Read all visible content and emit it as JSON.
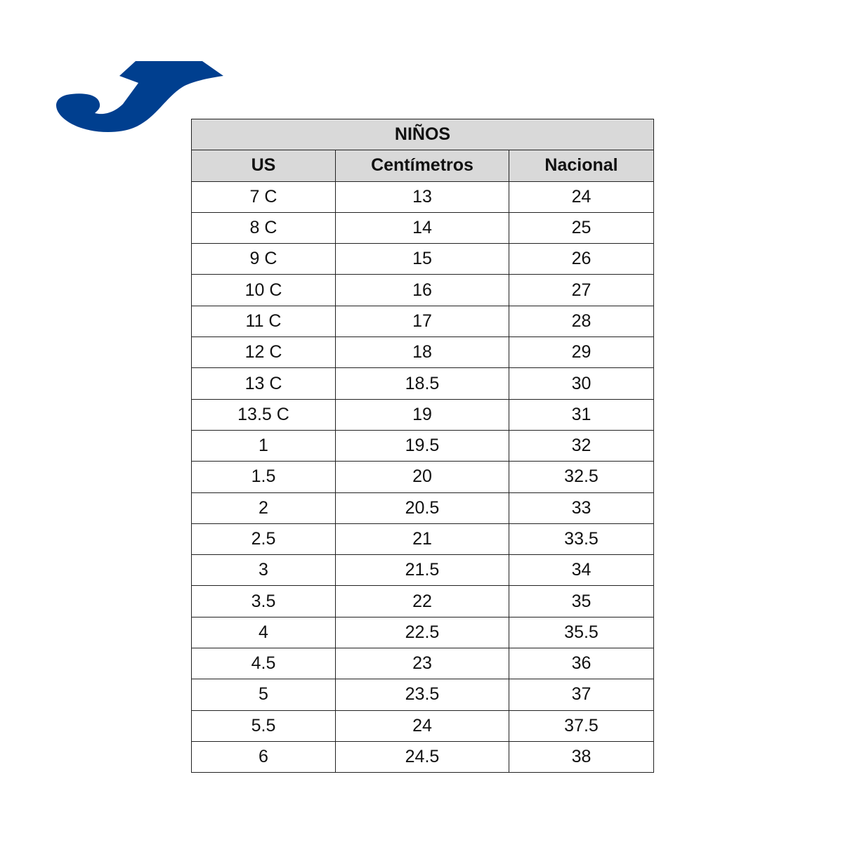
{
  "logo": {
    "brand": "Joma",
    "color": "#003f8f"
  },
  "table": {
    "title": "NIÑOS",
    "headers": [
      "US",
      "Centímetros",
      "Nacional"
    ],
    "header_bg": "#d9d9d9",
    "rows": [
      [
        "7 C",
        "13",
        "24"
      ],
      [
        "8 C",
        "14",
        "25"
      ],
      [
        "9 C",
        "15",
        "26"
      ],
      [
        "10 C",
        "16",
        "27"
      ],
      [
        "11 C",
        "17",
        "28"
      ],
      [
        "12 C",
        "18",
        "29"
      ],
      [
        "13 C",
        "18.5",
        "30"
      ],
      [
        "13.5 C",
        "19",
        "31"
      ],
      [
        "1",
        "19.5",
        "32"
      ],
      [
        "1.5",
        "20",
        "32.5"
      ],
      [
        "2",
        "20.5",
        "33"
      ],
      [
        "2.5",
        "21",
        "33.5"
      ],
      [
        "3",
        "21.5",
        "34"
      ],
      [
        "3.5",
        "22",
        "35"
      ],
      [
        "4",
        "22.5",
        "35.5"
      ],
      [
        "4.5",
        "23",
        "36"
      ],
      [
        "5",
        "23.5",
        "37"
      ],
      [
        "5.5",
        "24",
        "37.5"
      ],
      [
        "6",
        "24.5",
        "38"
      ]
    ]
  }
}
